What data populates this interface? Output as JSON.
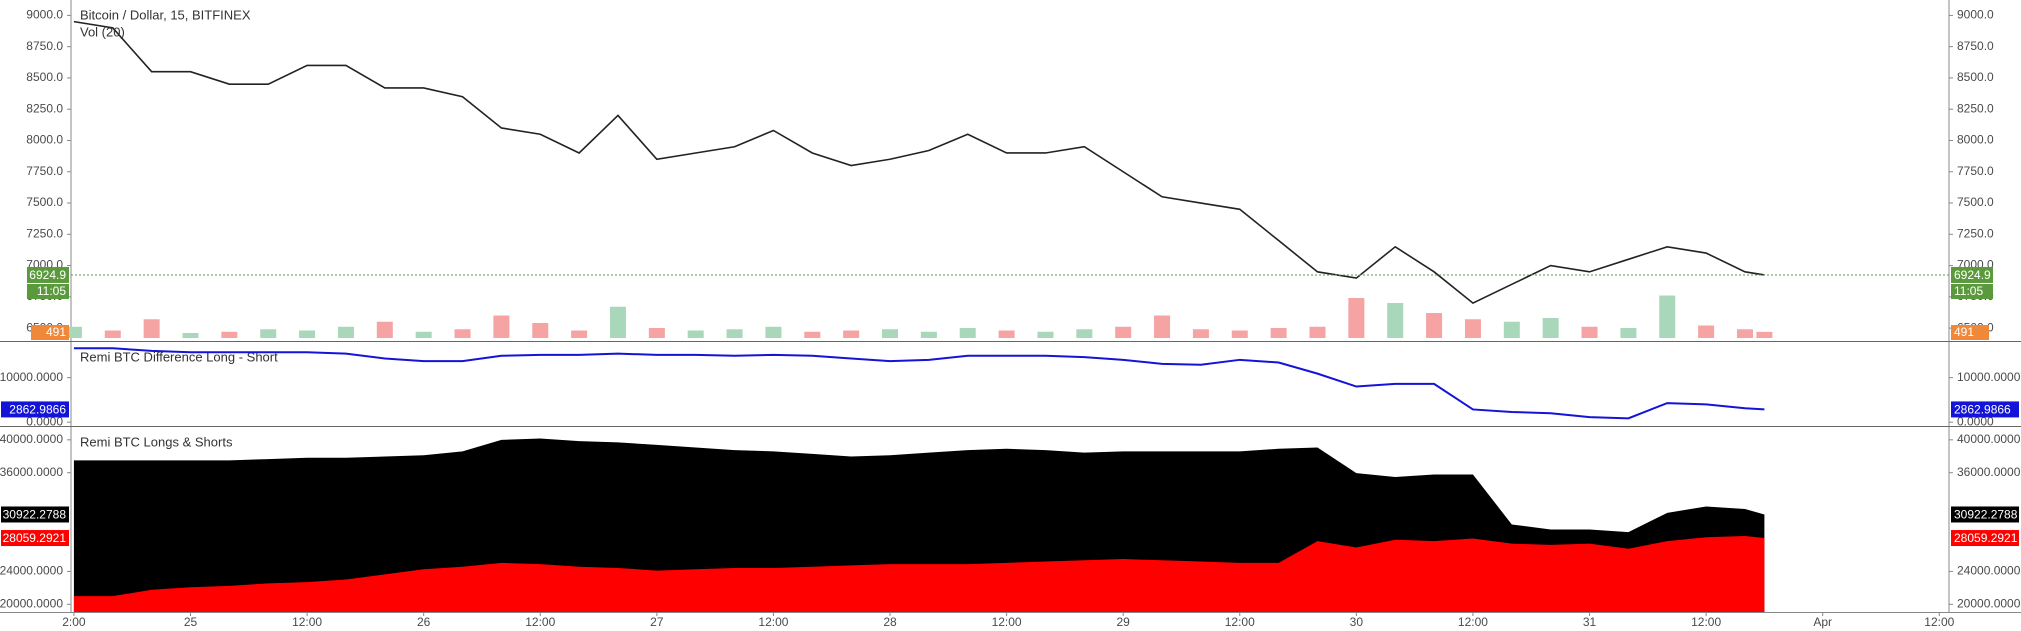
{
  "chart_data": [
    {
      "type": "line",
      "title": "Bitcoin / Dollar, 15, BITFINEX",
      "x": [
        12,
        16,
        20,
        24,
        28,
        32,
        36,
        40,
        44,
        48,
        52,
        56,
        60,
        64,
        68,
        72,
        76,
        80,
        84,
        88,
        92,
        96,
        100,
        104,
        108,
        112,
        116,
        120,
        124,
        128,
        132,
        136,
        140,
        144,
        148,
        152,
        156,
        160,
        164,
        168,
        172,
        176,
        180,
        184,
        186
      ],
      "series": [
        {
          "color": "#222222",
          "values": [
            8950,
            8900,
            8550,
            8550,
            8450,
            8450,
            8600,
            8600,
            8420,
            8420,
            8350,
            8100,
            8050,
            7900,
            8200,
            7850,
            7900,
            7950,
            8080,
            7900,
            7800,
            7850,
            7920,
            8050,
            7900,
            7900,
            7950,
            7750,
            7550,
            7500,
            7450,
            7200,
            6950,
            6900,
            7150,
            6950,
            6700,
            6850,
            7000,
            6950,
            7050,
            7150,
            7100,
            6950,
            6924.9
          ]
        },
        {
          "name": "Vol (20)",
          "axis": "y2",
          "up_color": "#a8d8b9",
          "down_color": "#f5a3a3",
          "label_color": "#f0883a",
          "values": [
            900,
            600,
            1500,
            400,
            500,
            700,
            600,
            900,
            1300,
            500,
            700,
            1800,
            1200,
            600,
            2500,
            800,
            600,
            700,
            900,
            500,
            600,
            700,
            500,
            800,
            600,
            500,
            700,
            900,
            1800,
            700,
            600,
            800,
            900,
            3200,
            2800,
            2000,
            1500,
            1300,
            1600,
            900,
            800,
            3400,
            1000,
            700,
            491
          ]
        }
      ],
      "last_price_color": "#5b9a3c",
      "countdown": "11:05",
      "ylim": [
        6397,
        9123
      ],
      "yticks": [
        {
          "value": 6500,
          "label": "6500.0"
        },
        {
          "value": 6750,
          "label": "6750.0"
        },
        {
          "value": 7000,
          "label": "7000.0"
        },
        {
          "value": 7250,
          "label": "7250.0"
        },
        {
          "value": 7500,
          "label": "7500.0"
        },
        {
          "value": 7750,
          "label": "7750.0"
        },
        {
          "value": 8000,
          "label": "8000.0"
        },
        {
          "value": 8250,
          "label": "8250.0"
        },
        {
          "value": 8500,
          "label": "8500.0"
        },
        {
          "value": 8750,
          "label": "8750.0"
        },
        {
          "value": 9000,
          "label": "9000.0"
        }
      ],
      "y2lim": [
        0,
        4000
      ],
      "grid": false
    },
    {
      "type": "line",
      "title": "Remi BTC Difference Long - Short",
      "x": [
        12,
        16,
        20,
        24,
        28,
        32,
        36,
        40,
        44,
        48,
        52,
        56,
        60,
        64,
        68,
        72,
        76,
        80,
        84,
        88,
        92,
        96,
        100,
        104,
        108,
        112,
        116,
        120,
        124,
        128,
        132,
        136,
        140,
        144,
        148,
        152,
        156,
        160,
        164,
        168,
        172,
        176,
        180,
        184,
        186
      ],
      "series": [
        {
          "color": "#1414d8",
          "values": [
            16600,
            16600,
            16000,
            15700,
            15700,
            15700,
            15700,
            15400,
            14300,
            13700,
            13700,
            14900,
            15100,
            15100,
            15400,
            15100,
            15100,
            14900,
            15100,
            14900,
            14300,
            13700,
            14000,
            14900,
            14900,
            14900,
            14600,
            14000,
            13100,
            12900,
            14000,
            13400,
            10900,
            8000,
            8600,
            8600,
            2860,
            2290,
            2000,
            1140,
            860,
            4290,
            4000,
            3140,
            2862.9866
          ]
        }
      ],
      "ylim": [
        -857,
        18000
      ],
      "yticks": [
        {
          "value": 0,
          "label": "0.0000"
        },
        {
          "value": 10000,
          "label": "10000.0000"
        }
      ],
      "grid": false
    },
    {
      "type": "area",
      "title": "Remi BTC Longs & Shorts",
      "x": [
        12,
        16,
        20,
        24,
        28,
        32,
        36,
        40,
        44,
        48,
        52,
        56,
        60,
        64,
        68,
        72,
        76,
        80,
        84,
        88,
        92,
        96,
        100,
        104,
        108,
        112,
        116,
        120,
        124,
        128,
        132,
        136,
        140,
        144,
        148,
        152,
        156,
        160,
        164,
        168,
        172,
        176,
        180,
        184,
        186
      ],
      "series": [
        {
          "color": "#000000",
          "values": [
            37500,
            37500,
            37500,
            37500,
            37500,
            37660,
            37820,
            37820,
            37970,
            38130,
            38600,
            40000,
            40160,
            39840,
            39690,
            39380,
            39070,
            38750,
            38600,
            38290,
            37970,
            38130,
            38440,
            38750,
            38910,
            38750,
            38440,
            38600,
            38600,
            38600,
            38600,
            38910,
            39070,
            35950,
            35480,
            35790,
            35790,
            29710,
            29090,
            29090,
            28780,
            31120,
            31900,
            31590,
            30922.2788
          ]
        },
        {
          "color": "#ff0000",
          "values": [
            20990,
            20990,
            21770,
            22080,
            22240,
            22550,
            22700,
            23010,
            23640,
            24260,
            24570,
            25040,
            24880,
            24570,
            24420,
            24100,
            24260,
            24420,
            24420,
            24570,
            24730,
            24880,
            24880,
            24880,
            25040,
            25200,
            25350,
            25510,
            25350,
            25200,
            25040,
            25040,
            27690,
            26910,
            27850,
            27690,
            28000,
            27380,
            27220,
            27380,
            26750,
            27690,
            28160,
            28310,
            28059.2921
          ]
        }
      ],
      "ylim": [
        19065,
        41560
      ],
      "yticks": [
        {
          "value": 20000,
          "label": "20000.0000"
        },
        {
          "value": 24000,
          "label": "24000.0000"
        },
        {
          "value": 36000,
          "label": "36000.0000"
        },
        {
          "value": 40000,
          "label": "40000.0000"
        }
      ],
      "xlim": [
        11.7,
        205
      ],
      "xticks": [
        {
          "value": 12,
          "label": "2:00"
        },
        {
          "value": 24,
          "label": "25"
        },
        {
          "value": 36,
          "label": "12:00"
        },
        {
          "value": 48,
          "label": "26"
        },
        {
          "value": 60,
          "label": "12:00"
        },
        {
          "value": 72,
          "label": "27"
        },
        {
          "value": 84,
          "label": "12:00"
        },
        {
          "value": 96,
          "label": "28"
        },
        {
          "value": 108,
          "label": "12:00"
        },
        {
          "value": 120,
          "label": "29"
        },
        {
          "value": 132,
          "label": "12:00"
        },
        {
          "value": 144,
          "label": "30"
        },
        {
          "value": 156,
          "label": "12:00"
        },
        {
          "value": 168,
          "label": "31"
        },
        {
          "value": 180,
          "label": "12:00"
        },
        {
          "value": 192,
          "label": "Apr"
        },
        {
          "value": 204,
          "label": "12:00"
        }
      ],
      "grid": false
    }
  ]
}
